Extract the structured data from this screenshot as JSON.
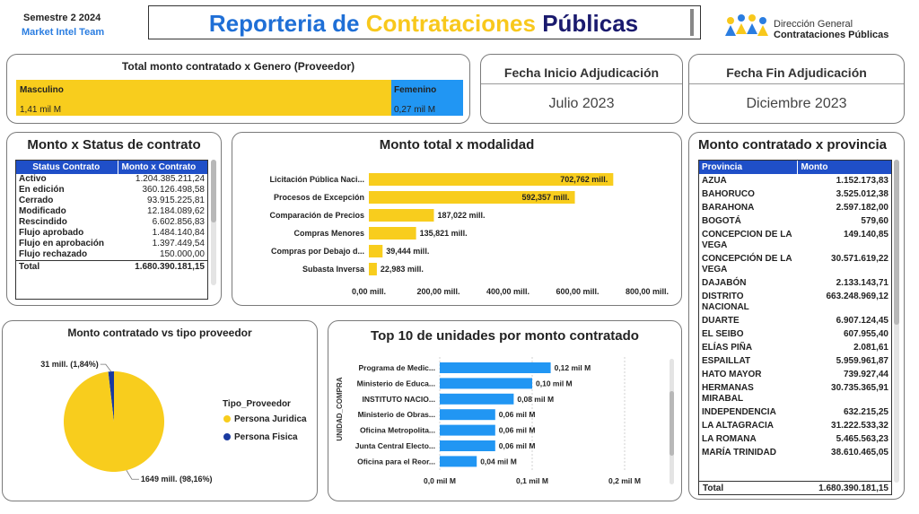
{
  "header": {
    "semester": "Semestre 2 2024",
    "team": "Market Intel Team",
    "title_part1": "Reporteria de ",
    "title_part2": "Contrataciones ",
    "title_part3": "Públicas",
    "logo_line1": "Dirección General",
    "logo_line2": "Contrataciones Públicas",
    "colors": {
      "title_blue": "#1f6fd6",
      "title_yellow": "#f8c81c",
      "title_dark": "#1a1a6e"
    }
  },
  "gender_panel": {
    "title": "Total monto contratado x Genero (Proveedor)",
    "masculino_label": "Masculino",
    "masculino_value": "1,41 mil M",
    "femenino_label": "Femenino",
    "femenino_value": "0,27 mil M",
    "masculino_share": 0.84,
    "colors": {
      "masculino": "#f8cd1d",
      "femenino": "#2196f3"
    }
  },
  "fecha_inicio": {
    "title": "Fecha Inicio Adjudicación",
    "value": "Julio 2023"
  },
  "fecha_fin": {
    "title": "Fecha Fin Adjudicación",
    "value": "Diciembre 2023"
  },
  "status_panel": {
    "title": "Monto x Status de contrato",
    "col_status": "Status Contrato",
    "col_monto": "Monto x Contrato",
    "rows": [
      {
        "status": "Activo",
        "monto": "1.204.385.211,24"
      },
      {
        "status": "En edición",
        "monto": "360.126.498,58"
      },
      {
        "status": "Cerrado",
        "monto": "93.915.225,81"
      },
      {
        "status": "Modificado",
        "monto": "12.184.089,62"
      },
      {
        "status": "Rescindido",
        "monto": "6.602.856,83"
      },
      {
        "status": "Flujo aprobado",
        "monto": "1.484.140,84"
      },
      {
        "status": "Flujo en aprobación",
        "monto": "1.397.449,54"
      },
      {
        "status": "Flujo rechazado",
        "monto": "150.000,00"
      }
    ],
    "total_label": "Total",
    "total_value": "1.680.390.181,15"
  },
  "provincia_panel": {
    "title": "Monto contratado x provincia",
    "col_provincia": "Provincia",
    "col_monto": "Monto",
    "rows": [
      {
        "provincia": "AZUA",
        "monto": "1.152.173,83"
      },
      {
        "provincia": "BAHORUCO",
        "monto": "3.525.012,38"
      },
      {
        "provincia": "BARAHONA",
        "monto": "2.597.182,00"
      },
      {
        "provincia": "BOGOTÁ",
        "monto": "579,60"
      },
      {
        "provincia": "CONCEPCION DE LA VEGA",
        "monto": "149.140,85"
      },
      {
        "provincia": "CONCEPCIÓN DE LA VEGA",
        "monto": "30.571.619,22"
      },
      {
        "provincia": "DAJABÓN",
        "monto": "2.133.143,71"
      },
      {
        "provincia": "DISTRITO NACIONAL",
        "monto": "663.248.969,12"
      },
      {
        "provincia": "DUARTE",
        "monto": "6.907.124,45"
      },
      {
        "provincia": "EL SEIBO",
        "monto": "607.955,40"
      },
      {
        "provincia": "ELÍAS PIÑA",
        "monto": "2.081,61"
      },
      {
        "provincia": "ESPAILLAT",
        "monto": "5.959.961,87"
      },
      {
        "provincia": "HATO MAYOR",
        "monto": "739.927,44"
      },
      {
        "provincia": "HERMANAS MIRABAL",
        "monto": "30.735.365,91"
      },
      {
        "provincia": "INDEPENDENCIA",
        "monto": "632.215,25"
      },
      {
        "provincia": "LA ALTAGRACIA",
        "monto": "31.222.533,32"
      },
      {
        "provincia": "LA ROMANA",
        "monto": "5.465.563,23"
      },
      {
        "provincia": "MARÍA TRINIDAD",
        "monto": "38.610.465,05"
      }
    ],
    "total_label": "Total",
    "total_value": "1.680.390.181,15"
  },
  "chart_data": [
    {
      "id": "modalidad",
      "type": "bar",
      "orientation": "horizontal",
      "title": "Monto total x modalidad",
      "categories": [
        "Licitación Pública Naci...",
        "Procesos de Excepción",
        "Comparación de Precios",
        "Compras Menores",
        "Compras por Debajo d...",
        "Subasta Inversa"
      ],
      "values": [
        702.762,
        592.357,
        187.022,
        135.821,
        39.444,
        22.983
      ],
      "data_labels": [
        "702,762 mill.",
        "592,357 mill.",
        "187,022 mill.",
        "135,821 mill.",
        "39,444 mill.",
        "22,983 mill."
      ],
      "xlim": [
        0,
        800
      ],
      "x_ticks": [
        0,
        200,
        400,
        600,
        800
      ],
      "x_tick_labels": [
        "0,00 mill.",
        "200,00 mill.",
        "400,00 mill.",
        "600,00 mill.",
        "800,00 mill."
      ],
      "color": "#f8cd1d",
      "grid": false
    },
    {
      "id": "tipo_proveedor",
      "type": "pie",
      "title": "Monto contratado vs tipo proveedor",
      "legend_title": "Tipo_Proveedor",
      "legend_position": "right",
      "slices": [
        {
          "name": "Persona Juridica",
          "value": 1649,
          "label": "1649 mill. (98,16%)",
          "color": "#f8cd1d"
        },
        {
          "name": "Persona Fisica",
          "value": 31,
          "label": "31 mill. (1,84%)",
          "color": "#1a3aa0"
        }
      ]
    },
    {
      "id": "top10",
      "type": "bar",
      "orientation": "horizontal",
      "title": "Top 10 de unidades por monto contratado",
      "ylabel": "UNIDAD_COMPRA",
      "categories": [
        "Programa de Medic...",
        "Ministerio de Educa...",
        "INSTITUTO NACIO...",
        "Ministerio de Obras...",
        "Oficina Metropolita...",
        "Junta Central Electo...",
        "Oficina para el Reor..."
      ],
      "values": [
        0.12,
        0.1,
        0.08,
        0.06,
        0.06,
        0.06,
        0.04
      ],
      "data_labels": [
        "0,12 mil M",
        "0,10 mil M",
        "0,08 mil M",
        "0,06 mil M",
        "0,06 mil M",
        "0,06 mil M",
        "0,04 mil M"
      ],
      "xlim": [
        0,
        0.2
      ],
      "x_ticks": [
        0,
        0.1,
        0.2
      ],
      "x_tick_labels": [
        "0,0 mil M",
        "0,1 mil M",
        "0,2 mil M"
      ],
      "color": "#2196f3",
      "grid": true
    }
  ]
}
